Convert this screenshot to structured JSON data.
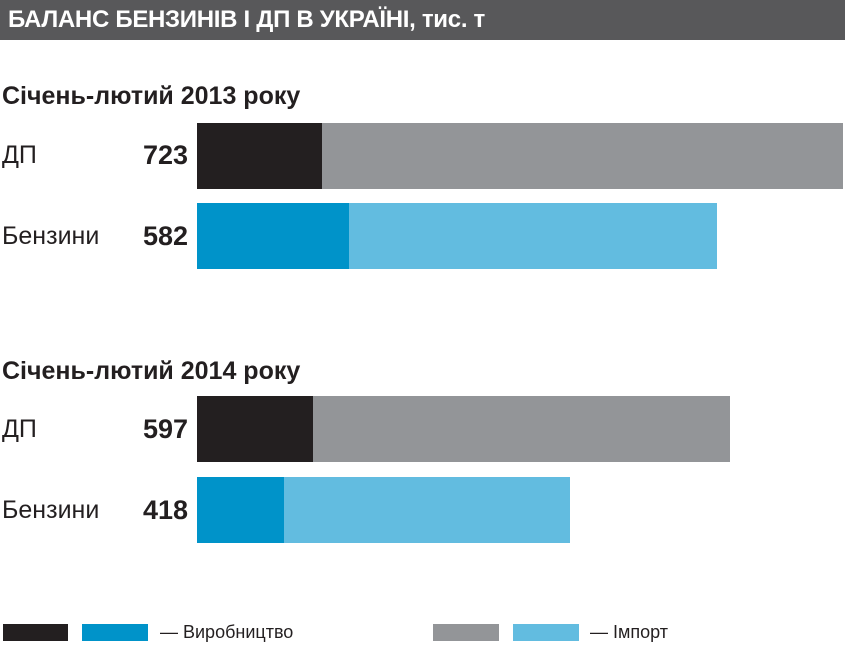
{
  "chart_data": {
    "type": "bar",
    "stacked": true,
    "orientation": "horizontal",
    "title": "БАЛАНС БЕНЗИНІВ І ДП В УКРАЇНІ, тис. т",
    "groups": [
      {
        "title": "Січень-лютий 2013 року",
        "rows": [
          {
            "label": "ДП",
            "total": "723",
            "production": 140,
            "import": 583
          },
          {
            "label": "Бензини",
            "total": "582",
            "production": 170,
            "import": 412
          }
        ]
      },
      {
        "title": "Січень-лютий 2014 року",
        "rows": [
          {
            "label": "ДП",
            "total": "597",
            "production": 130,
            "import": 467
          },
          {
            "label": "Бензини",
            "total": "418",
            "production": 97,
            "import": 321
          }
        ]
      }
    ],
    "legend": {
      "production": "— Виробництво",
      "import": "— Імпорт"
    },
    "colors": {
      "dp_production": "#231f20",
      "dp_import": "#939598",
      "benz_production": "#0093c9",
      "benz_import": "#62bce0"
    }
  }
}
